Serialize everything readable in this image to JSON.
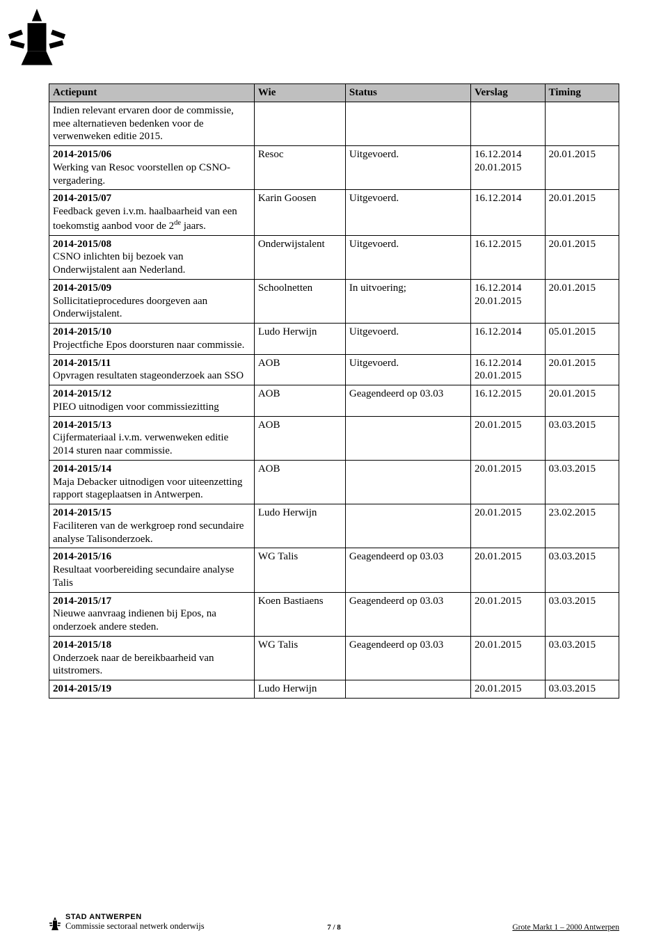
{
  "table": {
    "headers": [
      "Actiepunt",
      "Wie",
      "Status",
      "Verslag",
      "Timing"
    ],
    "rows": [
      {
        "actiepunt_code": "",
        "actiepunt_text_html": "Indien relevant ervaren door de commissie, mee alternatieven bedenken voor de verwenweken editie 2015.",
        "wie": "",
        "status": "",
        "verslag": "",
        "timing": ""
      },
      {
        "actiepunt_code": "2014-2015/06",
        "actiepunt_text_html": "Werking van Resoc voorstellen op CSNO-vergadering.",
        "wie": "Resoc",
        "status": "Uitgevoerd.",
        "verslag": "16.12.2014 20.01.2015",
        "timing": "20.01.2015"
      },
      {
        "actiepunt_code": "2014-2015/07",
        "actiepunt_text_html": "Feedback geven i.v.m. haalbaarheid van een toekomstig aanbod voor de 2<span class=\"sup\">de</span> jaars.",
        "wie": "Karin Goosen",
        "status": "Uitgevoerd.",
        "verslag": "16.12.2014",
        "timing": "20.01.2015"
      },
      {
        "actiepunt_code": "2014-2015/08",
        "actiepunt_text_html": "CSNO inlichten bij bezoek van Onderwijstalent aan Nederland.",
        "wie": "Onderwijstalent",
        "status": "Uitgevoerd.",
        "verslag": "16.12.2015",
        "timing": "20.01.2015"
      },
      {
        "actiepunt_code": "2014-2015/09",
        "actiepunt_text_html": "Sollicitatieprocedures doorgeven aan Onderwijstalent.",
        "wie": "Schoolnetten",
        "status": "In uitvoering;",
        "verslag": "16.12.2014 20.01.2015",
        "timing": "20.01.2015"
      },
      {
        "actiepunt_code": "2014-2015/10",
        "actiepunt_text_html": "Projectfiche Epos doorsturen naar commissie.",
        "wie": "Ludo Herwijn",
        "status": "Uitgevoerd.",
        "verslag": "16.12.2014",
        "timing": "05.01.2015"
      },
      {
        "actiepunt_code": "2014-2015/11",
        "actiepunt_text_html": "Opvragen resultaten stageonderzoek aan SSO",
        "wie": "AOB",
        "status": "Uitgevoerd.",
        "verslag": "16.12.2014 20.01.2015",
        "timing": "20.01.2015"
      },
      {
        "actiepunt_code": "2014-2015/12",
        "actiepunt_text_html": "PIEO uitnodigen voor commissiezitting",
        "wie": "AOB",
        "status": "Geagendeerd op 03.03",
        "verslag": "16.12.2015",
        "timing": "20.01.2015"
      },
      {
        "actiepunt_code": "2014-2015/13",
        "actiepunt_text_html": "Cijfermateriaal i.v.m. verwenweken editie 2014 sturen naar commissie.",
        "wie": "AOB",
        "status": "",
        "verslag": "20.01.2015",
        "timing": "03.03.2015"
      },
      {
        "actiepunt_code": "2014-2015/14",
        "actiepunt_text_html": "Maja Debacker uitnodigen voor uiteenzetting rapport stageplaatsen in Antwerpen.",
        "wie": "AOB",
        "status": "",
        "verslag": "20.01.2015",
        "timing": "03.03.2015"
      },
      {
        "actiepunt_code": "2014-2015/15",
        "actiepunt_text_html": "Faciliteren van de werkgroep rond secundaire analyse Talisonderzoek.",
        "wie": "Ludo Herwijn",
        "status": "",
        "verslag": "20.01.2015",
        "timing": "23.02.2015"
      },
      {
        "actiepunt_code": "2014-2015/16",
        "actiepunt_text_html": "Resultaat voorbereiding secundaire analyse Talis",
        "wie": "WG Talis",
        "status": "Geagendeerd op 03.03",
        "verslag": "20.01.2015",
        "timing": "03.03.2015"
      },
      {
        "actiepunt_code": "2014-2015/17",
        "actiepunt_text_html": "Nieuwe aanvraag indienen bij Epos, na onderzoek andere steden.",
        "wie": "Koen Bastiaens",
        "status": "Geagendeerd op 03.03",
        "verslag": "20.01.2015",
        "timing": "03.03.2015"
      },
      {
        "actiepunt_code": "2014-2015/18",
        "actiepunt_text_html": "Onderzoek naar de bereikbaarheid van uitstromers.",
        "wie": "WG Talis",
        "status": "Geagendeerd op 03.03",
        "verslag": "20.01.2015",
        "timing": "03.03.2015"
      },
      {
        "actiepunt_code": "2014-2015/19",
        "actiepunt_text_html": "",
        "wie": "Ludo Herwijn",
        "status": "",
        "verslag": "20.01.2015",
        "timing": "03.03.2015"
      }
    ]
  },
  "footer": {
    "stad": "STAD ANTWERPEN",
    "commissie": "Commissie sectoraal netwerk onderwijs",
    "page": "7 / 8",
    "address": "Grote Markt 1 – 2000 Antwerpen"
  }
}
